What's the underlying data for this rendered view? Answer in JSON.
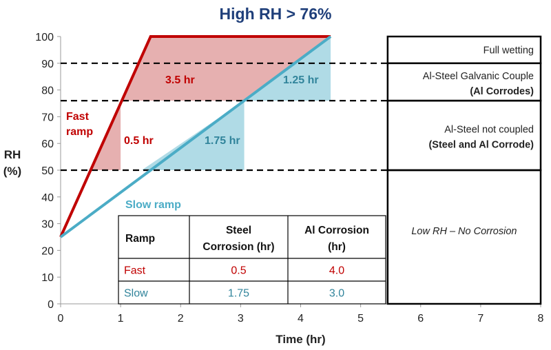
{
  "chart_data": {
    "type": "line",
    "title": "High RH > 76%",
    "xlabel": "Time (hr)",
    "ylabel": "RH (%)",
    "ylabel_lines": [
      "RH",
      "(%)"
    ],
    "xlim": [
      0,
      8
    ],
    "ylim": [
      0,
      100
    ],
    "xticks": [
      "0",
      "1",
      "2",
      "3",
      "4",
      "5",
      "6",
      "7",
      "8"
    ],
    "yticks": [
      "0",
      "10",
      "20",
      "30",
      "40",
      "50",
      "60",
      "70",
      "80",
      "90",
      "100"
    ],
    "thresholds": [
      90,
      76,
      50
    ],
    "series": [
      {
        "name": "Fast ramp",
        "label_lines": [
          "Fast",
          "ramp"
        ],
        "color": "#c00000",
        "x": [
          0,
          1.5,
          4.5
        ],
        "y": [
          25,
          100,
          100
        ]
      },
      {
        "name": "Slow ramp",
        "label_lines": [
          "Slow ramp"
        ],
        "color": "#4bacc6",
        "x": [
          0,
          4.5
        ],
        "y": [
          25,
          100
        ]
      }
    ],
    "shaded_regions": [
      {
        "label": "3.5 hr",
        "color": "#e6b0b0",
        "text_color": "#c00000",
        "points": [
          [
            1.0,
            76
          ],
          [
            1.5,
            100
          ],
          [
            4.5,
            100
          ],
          [
            3.06,
            76
          ]
        ]
      },
      {
        "label": "0.5 hr",
        "color": "#e6b0b0",
        "text_color": "#c00000",
        "points": [
          [
            0.5,
            50
          ],
          [
            1.0,
            76
          ],
          [
            1.0,
            50
          ]
        ]
      },
      {
        "label": "1.75 hr",
        "color": "#b0dbe6",
        "text_color": "#31849b",
        "points": [
          [
            1.35,
            50
          ],
          [
            3.06,
            76
          ],
          [
            3.06,
            50
          ]
        ]
      },
      {
        "label": "1.25 hr",
        "color": "#b0dbe6",
        "text_color": "#31849b",
        "points": [
          [
            3.06,
            76
          ],
          [
            4.5,
            100
          ],
          [
            4.5,
            76
          ]
        ]
      }
    ],
    "zones": [
      {
        "label": "Full wetting",
        "range": [
          90,
          100
        ]
      },
      {
        "label": "Al-Steel Galvanic Couple",
        "label_bold": "(Al Corrodes)",
        "range": [
          76,
          90
        ]
      },
      {
        "label": "Al-Steel not coupled",
        "label_bold": "(Steel and Al Corrode)",
        "range": [
          50,
          76
        ]
      },
      {
        "label": "Low RH – No Corrosion",
        "range": [
          0,
          50
        ],
        "italic": true
      }
    ],
    "table": {
      "headers": [
        "Ramp",
        "Steel Corrosion (hr)",
        "Al Corrosion (hr)"
      ],
      "header_lines": [
        [
          "Ramp"
        ],
        [
          "Steel",
          "Corrosion (hr)"
        ],
        [
          "Al Corrosion",
          "(hr)"
        ]
      ],
      "rows": [
        {
          "cells": [
            "Fast",
            "0.5",
            "4.0"
          ],
          "color": "#c00000"
        },
        {
          "cells": [
            "Slow",
            "1.75",
            "3.0"
          ],
          "color": "#31849b"
        }
      ]
    }
  }
}
